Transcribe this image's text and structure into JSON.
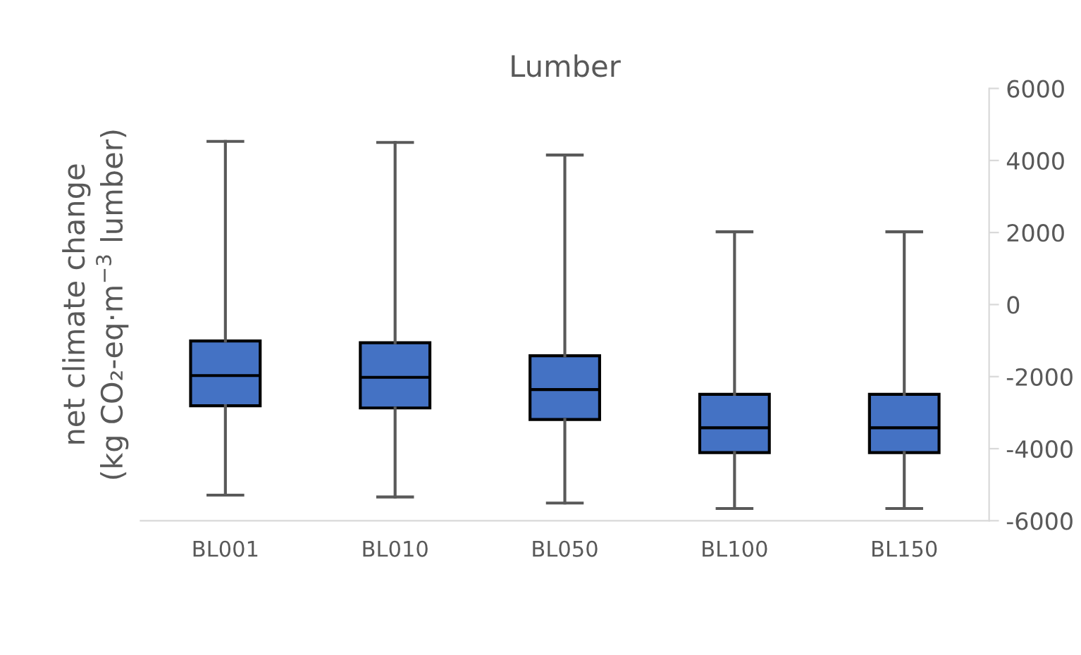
{
  "chart_data": {
    "type": "box",
    "title": "Lumber",
    "ylabel": "net climate change\n(kg CO₂-eq·m$^{−3}$ lumber)",
    "categories": [
      "BL001",
      "BL010",
      "BL050",
      "BL100",
      "BL150"
    ],
    "boxes": [
      {
        "low": -5290,
        "q1": -2810,
        "median": -1970,
        "q3": -1010,
        "high": 4530
      },
      {
        "low": -5340,
        "q1": -2870,
        "median": -2020,
        "q3": -1060,
        "high": 4500
      },
      {
        "low": -5510,
        "q1": -3190,
        "median": -2360,
        "q3": -1420,
        "high": 4150
      },
      {
        "low": -5660,
        "q1": -4110,
        "median": -3420,
        "q3": -2490,
        "high": 2020
      },
      {
        "low": -5660,
        "q1": -4110,
        "median": -3420,
        "q3": -2490,
        "high": 2020
      }
    ],
    "color": "#4472c4",
    "ylim": [
      -6000,
      6000
    ],
    "yticks": [
      -6000,
      -4000,
      -2000,
      0,
      2000,
      4000,
      6000
    ],
    "grid": false
  }
}
